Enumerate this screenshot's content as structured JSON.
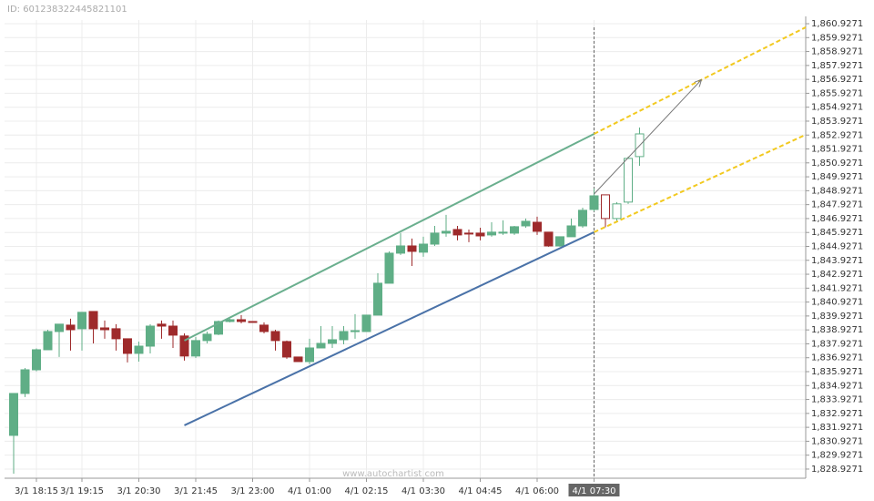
{
  "chart_data": {
    "type": "candlestick",
    "id_label": "ID: 601238322445821101",
    "watermark": "www.autochartist.com",
    "categories": [
      null,
      null,
      "3/1 18:15",
      null,
      null,
      null,
      "3/1 19:15",
      null,
      null,
      null,
      null,
      "3/1 20:30",
      null,
      null,
      null,
      null,
      "3/1 21:45",
      null,
      null,
      null,
      null,
      "3/1 23:00",
      null,
      null,
      null,
      null,
      "4/1 01:00",
      null,
      null,
      null,
      null,
      "4/1 02:15",
      null,
      null,
      null,
      null,
      "4/1 03:30",
      null,
      null,
      null,
      null,
      "4/1 04:45",
      null,
      null,
      null,
      null,
      "4/1 06:00",
      null,
      null,
      null,
      null,
      "4/1 07:30",
      null,
      null,
      null,
      null
    ],
    "highlight_category": 51,
    "vline": 51,
    "up_color": "#5fae86",
    "down_color": "#9e2a2b",
    "series": [
      {
        "style": "filled",
        "open": [
          1831.35,
          1834.36,
          1836.06,
          1837.5,
          1838.81,
          1839.27,
          1839.01,
          1840.25,
          1839.07,
          1839.01,
          1838.29,
          1837.24,
          1837.76,
          1839.34,
          1839.2,
          1838.49,
          1837.05,
          1838.16,
          1838.62,
          1839.53,
          1839.66,
          1839.53,
          1839.27,
          1838.81,
          1838.09,
          1836.98,
          1836.65,
          1837.63,
          1837.96,
          1838.22,
          1838.81,
          1838.81,
          1839.99,
          1842.28,
          1844.44,
          1844.96,
          1844.51,
          1845.09,
          1845.88,
          1846.14,
          1845.88,
          1845.88,
          1845.75,
          1845.88,
          1845.88,
          1846.4,
          1846.66,
          1845.95,
          1844.96,
          1845.62,
          1846.4,
          1847.58,
          null,
          null,
          null,
          null
        ],
        "high": [
          1834.36,
          1836.19,
          1837.6,
          1838.94,
          1839.34,
          1839.73,
          1840.19,
          1840.25,
          1839.6,
          1839.34,
          1838.29,
          1838.09,
          1839.34,
          1839.6,
          1839.6,
          1838.68,
          1838.42,
          1838.81,
          1839.6,
          1839.73,
          1839.99,
          1839.53,
          1839.47,
          1838.94,
          1838.16,
          1836.98,
          1838.29,
          1839.2,
          1839.2,
          1839.2,
          1840.06,
          1839.99,
          1843.0,
          1844.57,
          1845.88,
          1845.49,
          1845.62,
          1846.4,
          1847.19,
          1846.4,
          1846.14,
          1846.27,
          1846.66,
          1846.8,
          1846.4,
          1846.93,
          1847.06,
          1845.95,
          1845.62,
          1846.93,
          1847.71,
          1849.09,
          null,
          null,
          null,
          null
        ],
        "low": [
          1828.6,
          1834.1,
          1835.95,
          1837.5,
          1836.98,
          1837.44,
          1837.44,
          1837.96,
          1838.29,
          1837.44,
          1836.59,
          1836.65,
          1837.24,
          1838.29,
          1837.63,
          1836.72,
          1836.91,
          1837.96,
          1838.55,
          1839.47,
          1839.4,
          1839.47,
          1838.68,
          1837.44,
          1836.85,
          1836.65,
          1836.46,
          1837.63,
          1837.63,
          1837.89,
          1838.29,
          1838.81,
          1839.99,
          1842.28,
          1844.31,
          1843.52,
          1844.18,
          1844.96,
          1845.62,
          1845.36,
          1845.23,
          1845.36,
          1845.62,
          1845.75,
          1845.75,
          1846.27,
          1845.75,
          1844.9,
          1844.9,
          1845.62,
          1846.27,
          1847.45,
          null,
          null,
          null,
          null
        ],
        "close": [
          1834.36,
          1836.06,
          1837.5,
          1838.81,
          1839.34,
          1838.94,
          1840.19,
          1839.01,
          1838.94,
          1838.29,
          1837.24,
          1837.76,
          1839.2,
          1839.2,
          1838.55,
          1837.05,
          1838.16,
          1838.62,
          1839.53,
          1839.66,
          1839.53,
          1839.47,
          1838.81,
          1838.16,
          1836.98,
          1836.65,
          1837.63,
          1837.96,
          1838.22,
          1838.81,
          1838.87,
          1839.99,
          1842.28,
          1844.44,
          1844.96,
          1844.57,
          1845.09,
          1845.88,
          1846.01,
          1845.75,
          1845.82,
          1845.68,
          1845.95,
          1845.95,
          1846.34,
          1846.73,
          1846.01,
          1844.96,
          1845.62,
          1846.4,
          1847.52,
          1848.56,
          null,
          null,
          null,
          null
        ]
      },
      {
        "style": "hollow",
        "open": [
          null,
          null,
          null,
          null,
          null,
          null,
          null,
          null,
          null,
          null,
          null,
          null,
          null,
          null,
          null,
          null,
          null,
          null,
          null,
          null,
          null,
          null,
          null,
          null,
          null,
          null,
          null,
          null,
          null,
          null,
          null,
          null,
          null,
          null,
          null,
          null,
          null,
          null,
          null,
          null,
          null,
          null,
          null,
          null,
          null,
          null,
          null,
          null,
          null,
          null,
          null,
          null,
          1848.63,
          1846.93,
          1848.11,
          1851.38
        ],
        "high": [
          null,
          null,
          null,
          null,
          null,
          null,
          null,
          null,
          null,
          null,
          null,
          null,
          null,
          null,
          null,
          null,
          null,
          null,
          null,
          null,
          null,
          null,
          null,
          null,
          null,
          null,
          null,
          null,
          null,
          null,
          null,
          null,
          null,
          null,
          null,
          null,
          null,
          null,
          null,
          null,
          null,
          null,
          null,
          null,
          null,
          null,
          null,
          null,
          null,
          null,
          null,
          null,
          1848.63,
          1848.11,
          1851.38,
          1853.47
        ],
        "low": [
          null,
          null,
          null,
          null,
          null,
          null,
          null,
          null,
          null,
          null,
          null,
          null,
          null,
          null,
          null,
          null,
          null,
          null,
          null,
          null,
          null,
          null,
          null,
          null,
          null,
          null,
          null,
          null,
          null,
          null,
          null,
          null,
          null,
          null,
          null,
          null,
          null,
          null,
          null,
          null,
          null,
          null,
          null,
          null,
          null,
          null,
          null,
          null,
          null,
          null,
          null,
          null,
          1846.3,
          1846.66,
          1847.98,
          1850.72
        ],
        "close": [
          null,
          null,
          null,
          null,
          null,
          null,
          null,
          null,
          null,
          null,
          null,
          null,
          null,
          null,
          null,
          null,
          null,
          null,
          null,
          null,
          null,
          null,
          null,
          null,
          null,
          null,
          null,
          null,
          null,
          null,
          null,
          null,
          null,
          null,
          null,
          null,
          null,
          null,
          null,
          null,
          null,
          null,
          null,
          null,
          null,
          null,
          null,
          null,
          null,
          null,
          null,
          null,
          1846.93,
          1847.98,
          1851.25,
          1853.01
        ]
      }
    ],
    "lines": [
      {
        "color": "#6aaf8e",
        "dash": false,
        "x": [
          15,
          51
        ],
        "y": [
          1838.16,
          1853.01
        ]
      },
      {
        "color": "#4a72a8",
        "dash": false,
        "x": [
          15,
          51
        ],
        "y": [
          1832.07,
          1845.95
        ]
      },
      {
        "color": "#f2c91f",
        "dash": true,
        "x": [
          51,
          69.6
        ],
        "y": [
          1853.01,
          1860.67
        ]
      },
      {
        "color": "#f2c91f",
        "dash": true,
        "x": [
          51,
          69.6
        ],
        "y": [
          1845.95,
          1852.95
        ]
      },
      {
        "color": "#777777",
        "dash": false,
        "arrow": true,
        "x": [
          51,
          60.4
        ],
        "y": [
          1848.69,
          1856.87
        ]
      }
    ],
    "xlim": [
      -0.8,
      69.6
    ],
    "ylim": [
      1828.27,
      1861.19
    ],
    "grid": true,
    "yticks": [
      {
        "value": 1828.9271,
        "label": "1,828.9271"
      },
      {
        "value": 1829.9271,
        "label": "1,829.9271"
      },
      {
        "value": 1830.9271,
        "label": "1,830.9271"
      },
      {
        "value": 1831.9271,
        "label": "1,831.9271"
      },
      {
        "value": 1832.9271,
        "label": "1,832.9271"
      },
      {
        "value": 1833.9271,
        "label": "1,833.9271"
      },
      {
        "value": 1834.9271,
        "label": "1,834.9271"
      },
      {
        "value": 1835.9271,
        "label": "1,835.9271"
      },
      {
        "value": 1836.9271,
        "label": "1,836.9271"
      },
      {
        "value": 1837.9271,
        "label": "1,837.9271"
      },
      {
        "value": 1838.9271,
        "label": "1,838.9271"
      },
      {
        "value": 1839.9271,
        "label": "1,839.9271"
      },
      {
        "value": 1840.9271,
        "label": "1,840.9271"
      },
      {
        "value": 1841.9271,
        "label": "1,841.9271"
      },
      {
        "value": 1842.9271,
        "label": "1,842.9271"
      },
      {
        "value": 1843.9271,
        "label": "1,843.9271"
      },
      {
        "value": 1844.9271,
        "label": "1,844.9271"
      },
      {
        "value": 1845.9271,
        "label": "1,845.9271"
      },
      {
        "value": 1846.9271,
        "label": "1,846.9271"
      },
      {
        "value": 1847.9271,
        "label": "1,847.9271"
      },
      {
        "value": 1848.9271,
        "label": "1,848.9271"
      },
      {
        "value": 1849.9271,
        "label": "1,849.9271"
      },
      {
        "value": 1850.9271,
        "label": "1,850.9271"
      },
      {
        "value": 1851.9271,
        "label": "1,851.9271"
      },
      {
        "value": 1852.9271,
        "label": "1,852.9271"
      },
      {
        "value": 1853.9271,
        "label": "1,853.9271"
      },
      {
        "value": 1854.9271,
        "label": "1,854.9271"
      },
      {
        "value": 1855.9271,
        "label": "1,855.9271"
      },
      {
        "value": 1856.9271,
        "label": "1,856.9271"
      },
      {
        "value": 1857.9271,
        "label": "1,857.9271"
      },
      {
        "value": 1858.9271,
        "label": "1,858.9271"
      },
      {
        "value": 1859.9271,
        "label": "1,859.9271"
      },
      {
        "value": 1860.9271,
        "label": "1,860.9271"
      }
    ]
  }
}
